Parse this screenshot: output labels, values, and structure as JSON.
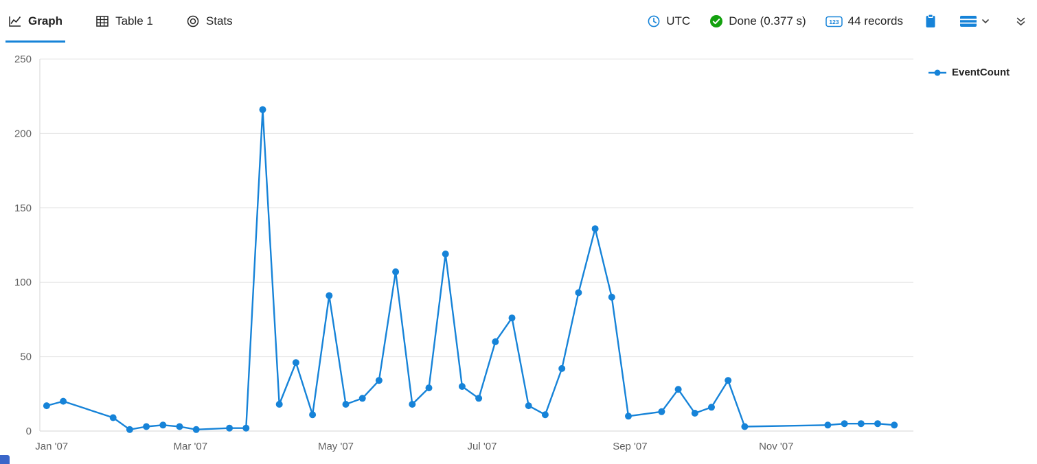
{
  "colors": {
    "accent": "#1683d8",
    "success_green": "#13a10e",
    "axis_text": "#616161",
    "grid": "#e6e6e6",
    "axis_line": "#d6d6d6"
  },
  "tabs": [
    {
      "label": "Graph",
      "icon": "line-chart-icon",
      "active": true
    },
    {
      "label": "Table 1",
      "icon": "table-icon",
      "active": false
    },
    {
      "label": "Stats",
      "icon": "stats-icon",
      "active": false
    }
  ],
  "statusbar": {
    "timezone": "UTC",
    "status": "Done (0.377 s)",
    "records": "44 records",
    "records_icon_text": "123"
  },
  "legend": {
    "label": "EventCount"
  },
  "chart_data": {
    "type": "line",
    "title": "",
    "xlabel": "",
    "ylabel": "",
    "x_unit": "week index of 2007 (weekly bins; gaps are missing weeks)",
    "marker": "circle",
    "grid": true,
    "legend_position": "right",
    "xlim": [
      -0.41,
      52.15
    ],
    "ylim": [
      0,
      250
    ],
    "y_ticks": [
      0,
      50,
      100,
      150,
      200,
      250
    ],
    "x_ticks": [
      {
        "pos": 0.3,
        "label": "Jan '07"
      },
      {
        "pos": 8.65,
        "label": "Mar '07"
      },
      {
        "pos": 17.4,
        "label": "May '07"
      },
      {
        "pos": 26.2,
        "label": "Jul '07"
      },
      {
        "pos": 35.1,
        "label": "Sep '07"
      },
      {
        "pos": 43.9,
        "label": "Nov '07"
      }
    ],
    "series": [
      {
        "name": "EventCount",
        "color": "#1683d8",
        "points": [
          [
            0,
            17
          ],
          [
            1,
            20
          ],
          [
            4,
            9
          ],
          [
            5,
            1
          ],
          [
            6,
            3
          ],
          [
            7,
            4
          ],
          [
            8,
            3
          ],
          [
            9,
            1
          ],
          [
            11,
            2
          ],
          [
            12,
            2
          ],
          [
            13,
            216
          ],
          [
            14,
            18
          ],
          [
            15,
            46
          ],
          [
            16,
            11
          ],
          [
            17,
            91
          ],
          [
            18,
            18
          ],
          [
            19,
            22
          ],
          [
            20,
            34
          ],
          [
            21,
            107
          ],
          [
            22,
            18
          ],
          [
            23,
            29
          ],
          [
            24,
            119
          ],
          [
            25,
            30
          ],
          [
            26,
            22
          ],
          [
            27,
            60
          ],
          [
            28,
            76
          ],
          [
            29,
            17
          ],
          [
            30,
            11
          ],
          [
            31,
            42
          ],
          [
            32,
            93
          ],
          [
            33,
            136
          ],
          [
            34,
            90
          ],
          [
            35,
            10
          ],
          [
            37,
            13
          ],
          [
            38,
            28
          ],
          [
            39,
            12
          ],
          [
            40,
            16
          ],
          [
            41,
            34
          ],
          [
            42,
            3
          ],
          [
            47,
            4
          ],
          [
            48,
            5
          ],
          [
            49,
            5
          ],
          [
            50,
            5
          ],
          [
            51,
            4
          ]
        ]
      }
    ]
  }
}
